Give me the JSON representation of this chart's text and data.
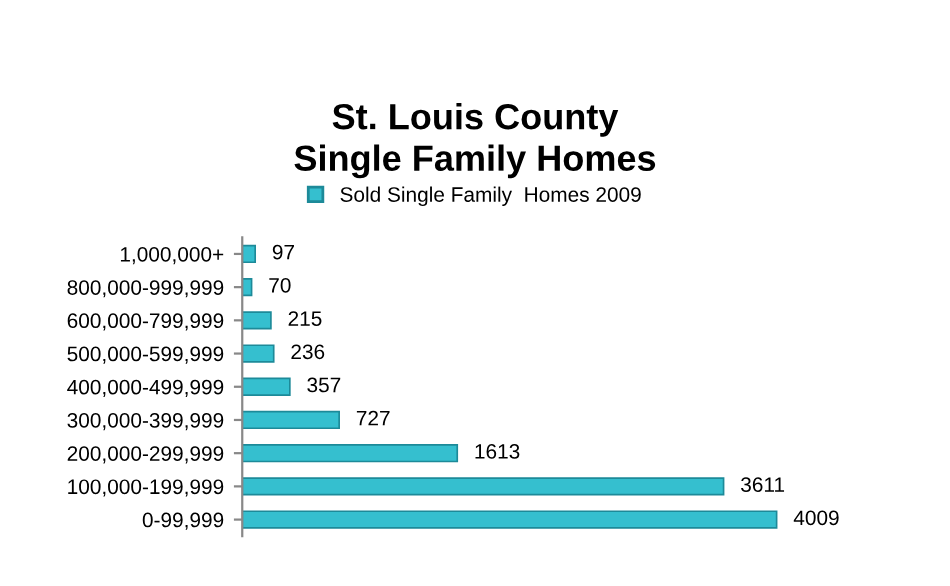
{
  "chart_data": {
    "type": "bar",
    "orientation": "horizontal",
    "title": "St. Louis County\nSingle Family Homes",
    "categories": [
      "1,000,000+",
      "800,000-999,999",
      "600,000-799,999",
      "500,000-599,999",
      "400,000-499,999",
      "300,000-399,999",
      "200,000-299,999",
      "100,000-199,999",
      "0-99,999"
    ],
    "series": [
      {
        "name": "Sold Single Family  Homes 2009",
        "color": "#35bfcf",
        "values": [
          97,
          70,
          215,
          236,
          357,
          727,
          1613,
          3611,
          4009
        ]
      }
    ],
    "data_labels": true,
    "legend": "top",
    "grid": false
  }
}
